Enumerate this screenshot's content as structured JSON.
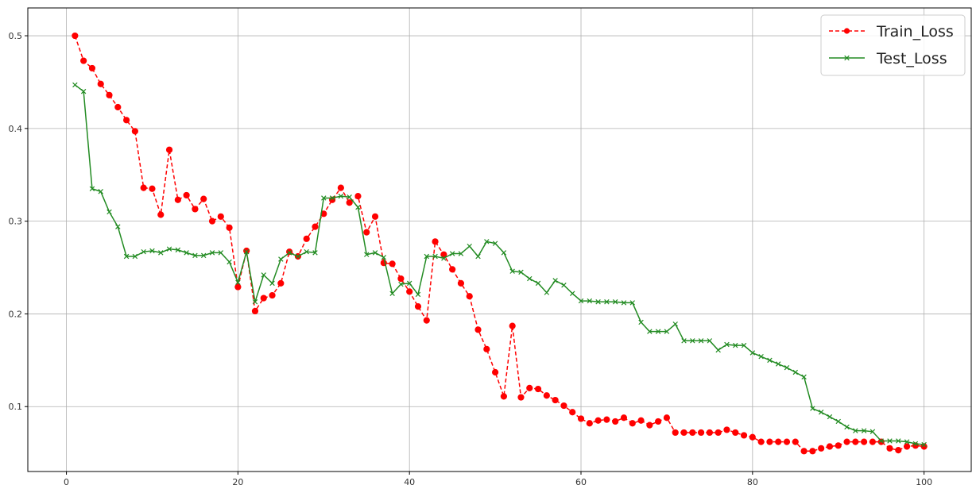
{
  "chart_data": {
    "type": "line",
    "title": "",
    "xlabel": "",
    "ylabel": "",
    "xlim": [
      -4.5,
      105.5
    ],
    "ylim": [
      0.03,
      0.53
    ],
    "xticks": [
      "0",
      "20",
      "40",
      "60",
      "80",
      "100"
    ],
    "yticks": [
      "0.1",
      "0.2",
      "0.3",
      "0.4",
      "0.5"
    ],
    "grid": true,
    "legend_position": "top-right",
    "x": [
      1,
      2,
      3,
      4,
      5,
      6,
      7,
      8,
      9,
      10,
      11,
      12,
      13,
      14,
      15,
      16,
      17,
      18,
      19,
      20,
      21,
      22,
      23,
      24,
      25,
      26,
      27,
      28,
      29,
      30,
      31,
      32,
      33,
      34,
      35,
      36,
      37,
      38,
      39,
      40,
      41,
      42,
      43,
      44,
      45,
      46,
      47,
      48,
      49,
      50,
      51,
      52,
      53,
      54,
      55,
      56,
      57,
      58,
      59,
      60,
      61,
      62,
      63,
      64,
      65,
      66,
      67,
      68,
      69,
      70,
      71,
      72,
      73,
      74,
      75,
      76,
      77,
      78,
      79,
      80,
      81,
      82,
      83,
      84,
      85,
      86,
      87,
      88,
      89,
      90,
      91,
      92,
      93,
      94,
      95,
      96,
      97,
      98,
      99,
      100
    ],
    "series": [
      {
        "name": "Train_Loss",
        "color": "#ff0000",
        "line_style": "dashed",
        "marker": "circle",
        "values": [
          0.5,
          0.473,
          0.465,
          0.448,
          0.436,
          0.423,
          0.409,
          0.397,
          0.336,
          0.335,
          0.307,
          0.377,
          0.323,
          0.328,
          0.313,
          0.324,
          0.3,
          0.305,
          0.293,
          0.229,
          0.268,
          0.203,
          0.217,
          0.22,
          0.233,
          0.267,
          0.262,
          0.281,
          0.294,
          0.308,
          0.323,
          0.336,
          0.32,
          0.327,
          0.288,
          0.305,
          0.255,
          0.254,
          0.238,
          0.224,
          0.208,
          0.193,
          0.278,
          0.264,
          0.248,
          0.233,
          0.219,
          0.183,
          0.162,
          0.137,
          0.111,
          0.187,
          0.11,
          0.12,
          0.119,
          0.112,
          0.107,
          0.101,
          0.094,
          0.087,
          0.082,
          0.085,
          0.086,
          0.084,
          0.088,
          0.082,
          0.085,
          0.08,
          0.084,
          0.088,
          0.072,
          0.072,
          0.072,
          0.072,
          0.072,
          0.072,
          0.075,
          0.072,
          0.069,
          0.067,
          0.062,
          0.062,
          0.062,
          0.062,
          0.062,
          0.052,
          0.052,
          0.055,
          0.057,
          0.058,
          0.062,
          0.062,
          0.062,
          0.062,
          0.062,
          0.055,
          0.053,
          0.057,
          0.058,
          0.057
        ]
      },
      {
        "name": "Test_Loss",
        "color": "#228b22",
        "line_style": "solid",
        "marker": "x",
        "values": [
          0.447,
          0.44,
          0.335,
          0.332,
          0.31,
          0.294,
          0.262,
          0.262,
          0.267,
          0.268,
          0.266,
          0.27,
          0.269,
          0.266,
          0.263,
          0.263,
          0.266,
          0.266,
          0.256,
          0.234,
          0.267,
          0.213,
          0.242,
          0.233,
          0.259,
          0.266,
          0.262,
          0.267,
          0.266,
          0.325,
          0.325,
          0.327,
          0.326,
          0.315,
          0.264,
          0.266,
          0.261,
          0.222,
          0.232,
          0.233,
          0.221,
          0.262,
          0.262,
          0.26,
          0.265,
          0.265,
          0.273,
          0.262,
          0.278,
          0.276,
          0.266,
          0.246,
          0.245,
          0.238,
          0.233,
          0.223,
          0.236,
          0.231,
          0.222,
          0.214,
          0.214,
          0.213,
          0.213,
          0.213,
          0.212,
          0.212,
          0.191,
          0.181,
          0.181,
          0.181,
          0.189,
          0.171,
          0.171,
          0.171,
          0.171,
          0.161,
          0.167,
          0.166,
          0.166,
          0.158,
          0.154,
          0.15,
          0.146,
          0.142,
          0.137,
          0.132,
          0.098,
          0.094,
          0.089,
          0.084,
          0.078,
          0.074,
          0.074,
          0.073,
          0.063,
          0.063,
          0.063,
          0.062,
          0.06,
          0.059
        ]
      }
    ]
  }
}
